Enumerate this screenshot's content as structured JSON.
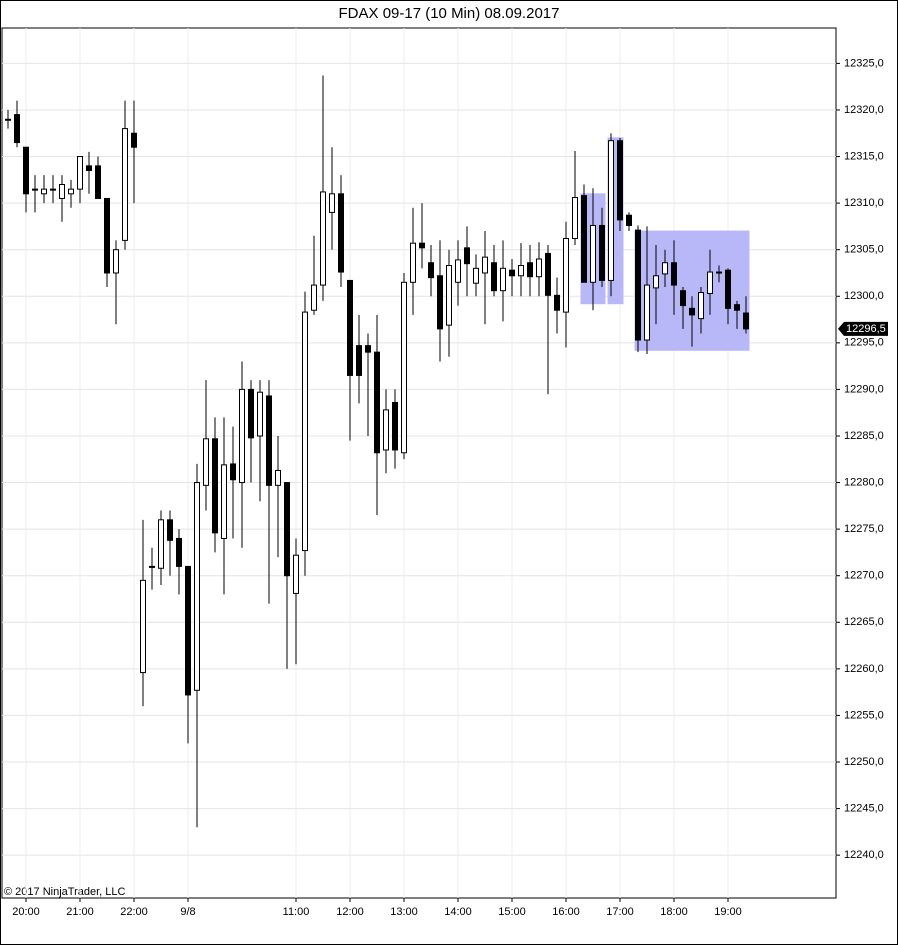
{
  "chart_data": {
    "type": "candlestick",
    "title": "FDAX 09-17 (10 Min)  08.09.2017",
    "copyright": "© 2017 NinjaTrader, LLC",
    "categories": [
      null,
      null,
      "20:00",
      null,
      null,
      null,
      null,
      null,
      "21:00",
      null,
      null,
      null,
      null,
      null,
      "22:00",
      null,
      null,
      null,
      null,
      null,
      "9/8",
      null,
      null,
      null,
      null,
      null,
      null,
      null,
      null,
      null,
      null,
      null,
      "11:00",
      null,
      null,
      null,
      null,
      null,
      "12:00",
      null,
      null,
      null,
      null,
      null,
      "13:00",
      null,
      null,
      null,
      null,
      null,
      "14:00",
      null,
      null,
      null,
      null,
      null,
      "15:00",
      null,
      null,
      null,
      null,
      null,
      "16:00",
      null,
      null,
      null,
      null,
      null,
      "17:00",
      null,
      null,
      null,
      null,
      null,
      "18:00",
      null,
      null,
      null,
      null,
      null,
      "19:00",
      null,
      null
    ],
    "open": [
      12319,
      12319.5,
      12316,
      12311.5,
      12311,
      12311.5,
      12310.5,
      12311,
      12311.5,
      12314,
      12314,
      12310.5,
      12302.5,
      12306,
      12317.5,
      12259.6,
      12271,
      12270.8,
      12276,
      12274,
      12271,
      12257.7,
      12279.7,
      12284.7,
      12274,
      12282,
      12280,
      12290,
      12285,
      12289.3,
      12279.7,
      12280,
      12268.1,
      12272.7,
      12298.5,
      12301.2,
      12309,
      12311,
      12301.7,
      12294.7,
      12294.7,
      12294,
      12283.5,
      12288.6,
      12283.2,
      12301.5,
      12305.7,
      12303.6,
      12302.2,
      12296.9,
      12301.5,
      12305.2,
      12301.4,
      12302.5,
      12303.6,
      12300.6,
      12302.8,
      12302.2,
      12303.6,
      12302.1,
      12304.6,
      12300.1,
      12298.3,
      12306.2,
      12310.8,
      12301.5,
      12307.6,
      12301.7,
      12316.7,
      12308.7,
      12307.1,
      12295.3,
      12300.9,
      12302.4,
      12303.6,
      12300.6,
      12298.7,
      12297.6,
      12300.3,
      12302.6,
      12302.8,
      12299.1,
      12298.2
    ],
    "high": [
      12320,
      12321,
      12316,
      12313,
      12313,
      12313,
      12313,
      12312.5,
      12315,
      12315.5,
      12315,
      12310.5,
      12306,
      12321,
      12321,
      12276,
      12273,
      12277,
      12277,
      12275,
      12271,
      12282,
      12291,
      12287,
      12287,
      12286,
      12293,
      12291,
      12291,
      12291,
      12285,
      12280,
      12274,
      12300.5,
      12306.5,
      12323.7,
      12316,
      12313,
      12301.7,
      12298,
      12296,
      12298,
      12290,
      12290,
      12302.5,
      12309.5,
      12310,
      12305.5,
      12306,
      12305,
      12306,
      12307.5,
      12304.5,
      12307,
      12305.5,
      12306,
      12304,
      12305.7,
      12305.5,
      12305.8,
      12305.5,
      12302,
      12308,
      12315.6,
      12312,
      12311.6,
      12309.5,
      12317.5,
      12317,
      12309,
      12307.6,
      12307.5,
      12305.5,
      12305,
      12306,
      12301,
      12300,
      12301,
      12305,
      12303.3,
      12303,
      12299.5,
      12300
    ],
    "low": [
      12318,
      12316,
      12309,
      12309,
      12310,
      12310,
      12308,
      12309.5,
      12310,
      12311,
      12310.5,
      12301,
      12297,
      12305,
      12310,
      12256,
      12268.5,
      12269,
      12270,
      12268,
      12252,
      12243,
      12277,
      12272.5,
      12268,
      12274,
      12273,
      12280,
      12278,
      12267,
      12272,
      12260,
      12260.5,
      12270,
      12298,
      12299.5,
      12305,
      12301,
      12284.5,
      12288.5,
      12285,
      12276.5,
      12281,
      12281.5,
      12282.5,
      12298,
      12303,
      12300,
      12293,
      12293.5,
      12299,
      12300,
      12300,
      12297,
      12300,
      12297.3,
      12300,
      12300,
      12300,
      12300,
      12289.5,
      12296,
      12294.5,
      12305.5,
      12301.5,
      12298.5,
      12301,
      12300,
      12307,
      12307,
      12294,
      12293.8,
      12297,
      12301,
      12298,
      12296.5,
      12294.6,
      12296,
      12298,
      12301.5,
      12297,
      12296.5,
      12296
    ],
    "close": [
      12319,
      12316.5,
      12311,
      12311.5,
      12311.5,
      12311.5,
      12312,
      12311.5,
      12315,
      12313.5,
      12310.5,
      12302.5,
      12305,
      12318,
      12316,
      12269.5,
      12271,
      12276,
      12273.8,
      12271,
      12257.2,
      12280,
      12284.7,
      12274.6,
      12281.9,
      12280.3,
      12290,
      12284.8,
      12289.7,
      12279.7,
      12281.3,
      12270,
      12272.2,
      12298.3,
      12301.2,
      12311.2,
      12311,
      12302.6,
      12291.5,
      12291.5,
      12294,
      12283.2,
      12287.8,
      12283.5,
      12301.5,
      12305.7,
      12305.2,
      12302,
      12296.5,
      12303.3,
      12303.9,
      12303.5,
      12303,
      12304.2,
      12300.6,
      12303,
      12302.2,
      12303.3,
      12302.1,
      12304,
      12300.1,
      12298.5,
      12306.2,
      12310.6,
      12301.5,
      12307.6,
      12301.7,
      12316.7,
      12308.2,
      12307.6,
      12295.3,
      12301.2,
      12302.2,
      12303.6,
      12301.2,
      12299,
      12298,
      12300.4,
      12302.6,
      12302.6,
      12298.7,
      12298.5,
      12296.5
    ],
    "up_color": "#ffffff",
    "down_color": "#000000",
    "last_price": 12296.5,
    "last_price_label": "12296,5",
    "highlights": [
      {
        "from": 64,
        "to": 66,
        "top": 12311,
        "bottom": 12299.2
      },
      {
        "from": 67,
        "to": 68,
        "top": 12317,
        "bottom": 12299.2
      },
      {
        "from": 70,
        "to": 82,
        "top": 12307,
        "bottom": 12294.2
      }
    ],
    "highlight_color": "#b8b8f8",
    "ylim": [
      12235.4,
      12328.8
    ],
    "yticks": [
      {
        "value": 12240,
        "label": "12240,0"
      },
      {
        "value": 12245,
        "label": "12245,0"
      },
      {
        "value": 12250,
        "label": "12250,0"
      },
      {
        "value": 12255,
        "label": "12255,0"
      },
      {
        "value": 12260,
        "label": "12260,0"
      },
      {
        "value": 12265,
        "label": "12265,0"
      },
      {
        "value": 12270,
        "label": "12270,0"
      },
      {
        "value": 12275,
        "label": "12275,0"
      },
      {
        "value": 12280,
        "label": "12280,0"
      },
      {
        "value": 12285,
        "label": "12285,0"
      },
      {
        "value": 12290,
        "label": "12290,0"
      },
      {
        "value": 12295,
        "label": "12295,0"
      },
      {
        "value": 12300,
        "label": "12300,0"
      },
      {
        "value": 12305,
        "label": "12305,0"
      },
      {
        "value": 12310,
        "label": "12310,0"
      },
      {
        "value": 12315,
        "label": "12315,0"
      },
      {
        "value": 12320,
        "label": "12320,0"
      },
      {
        "value": 12325,
        "label": "12325,0"
      }
    ],
    "grid": true
  }
}
